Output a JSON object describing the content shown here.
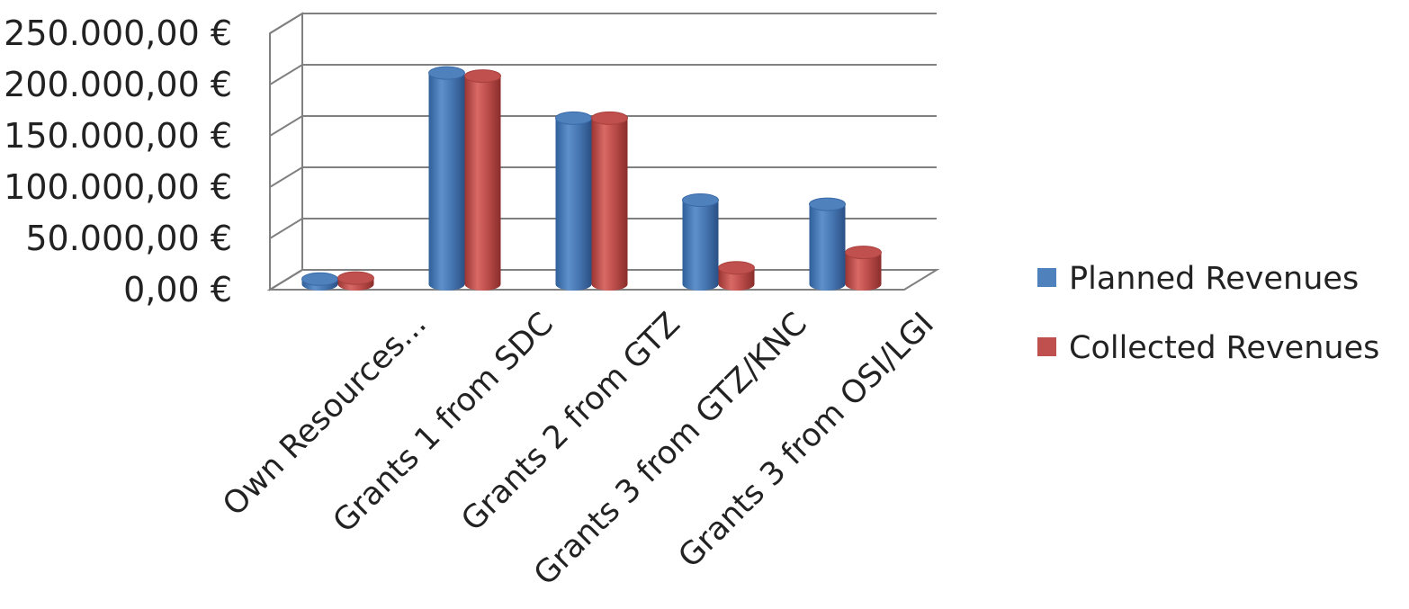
{
  "chart_data": {
    "type": "bar",
    "variant": "3d-clustered-cylinder",
    "title": "",
    "xlabel": "",
    "ylabel": "",
    "categories": [
      "Own Resources...",
      "Grants 1 from SDC",
      "Grants 2 from GTZ",
      "Grants 3 from GTZ/KNC",
      "Grants 3 from OSI/LGI"
    ],
    "series": [
      {
        "name": "Planned Revenues",
        "color": "#4f81bd",
        "values": [
          5000,
          206000,
          162000,
          82000,
          78000
        ]
      },
      {
        "name": "Collected Revenues",
        "color": "#c0504d",
        "values": [
          6000,
          203000,
          162000,
          16000,
          31000
        ]
      }
    ],
    "ylim": [
      0,
      250000
    ],
    "yticks": [
      "0,00 €",
      "50.000,00 €",
      "100.000,00 €",
      "150.000,00 €",
      "200.000,00 €",
      "250.000,00 €"
    ],
    "grid": true,
    "legend_position": "right"
  }
}
